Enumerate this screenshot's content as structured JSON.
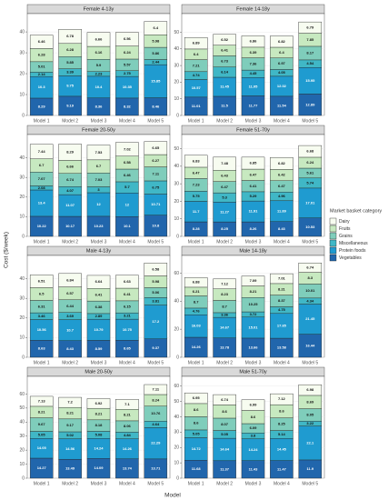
{
  "chart_data": {
    "type": "stacked_bar",
    "x_label": "Model",
    "y_label": "Cost ($/week)",
    "legend_title": "Market basket category",
    "legend_position": "right",
    "grid": true,
    "categories": [
      "Model 1",
      "Model 2",
      "Model 3",
      "Model 4",
      "Model 5"
    ],
    "series": [
      {
        "name": "Vegetables",
        "color": "#2166ac"
      },
      {
        "name": "Protein foods",
        "color": "#1f9bd0"
      },
      {
        "name": "Miscellaneous",
        "color": "#40b7c6"
      },
      {
        "name": "Grains",
        "color": "#7fcdbb"
      },
      {
        "name": "Fruits",
        "color": "#c7e9c0"
      },
      {
        "name": "Dairy",
        "color": "#f7fcf0"
      }
    ],
    "facets": [
      {
        "title": "Female 4-13y",
        "ylim": [
          0,
          47
        ],
        "yticks": [
          0,
          10,
          20,
          30,
          40
        ],
        "values": [
          [
            8.29,
            9.19,
            8.36,
            8.32,
            8.46
          ],
          [
            10.3,
            9.75,
            10.4,
            10.35,
            15.85
          ],
          [
            2.14,
            3.39,
            2.23,
            2.75,
            2.44
          ],
          [
            5.01,
            5.85,
            5.9,
            5.57,
            5.86
          ],
          [
            6.28,
            6.28,
            6.16,
            6.24,
            5.98
          ],
          [
            6.46,
            6.78,
            6.66,
            6.56,
            6.4
          ]
        ]
      },
      {
        "title": "Female 14-18y",
        "ylim": [
          0,
          59
        ],
        "yticks": [
          0,
          10,
          20,
          30,
          40,
          50
        ],
        "values": [
          [
            11.01,
            11.5,
            11.77,
            11.54,
            12.89
          ],
          [
            10.57,
            11.45,
            11.05,
            12.02,
            15.95
          ],
          [
            4.74,
            6.14,
            4.45,
            4.05,
            4.54
          ],
          [
            7.21,
            6.73,
            7.36,
            6.97,
            8.17
          ],
          [
            6.4,
            6.41,
            6.39,
            6.4,
            7.85
          ],
          [
            6.89,
            6.52,
            6.86,
            6.82,
            6.79
          ]
        ]
      },
      {
        "title": "Female 20-50y",
        "ylim": [
          0,
          50
        ],
        "yticks": [
          0,
          10,
          20,
          30,
          40
        ],
        "values": [
          [
            10.22,
            10.17,
            10.23,
            10.1,
            10.8
          ],
          [
            13.4,
            11.07,
            12,
            12,
            10.71
          ],
          [
            2.08,
            4.07,
            3,
            5.7,
            6.75
          ],
          [
            7.07,
            6.74,
            7.03,
            6.46,
            7.11
          ],
          [
            6.7,
            6.66,
            6.7,
            6.58,
            6.27
          ],
          [
            7.44,
            8.29,
            7.53,
            7.02,
            6.65
          ]
        ]
      },
      {
        "title": "Female 51-70y",
        "ylim": [
          0,
          56
        ],
        "yticks": [
          0,
          10,
          20,
          30,
          40,
          50
        ],
        "values": [
          [
            8.28,
            8.25,
            8.26,
            8.43,
            10.53
          ],
          [
            11.7,
            11.27,
            11.91,
            11.89,
            17.01
          ],
          [
            5.75,
            5.3,
            5.29,
            4.96,
            5.74
          ],
          [
            7.23,
            6.47,
            6.41,
            6.47,
            5.61
          ],
          [
            6.47,
            6.43,
            6.47,
            6.42,
            6.24
          ],
          [
            6.83,
            7.48,
            6.85,
            6.82,
            6.68
          ]
        ]
      },
      {
        "title": "Male 4-13y",
        "ylim": [
          0,
          50
        ],
        "yticks": [
          0,
          10,
          20,
          30,
          40
        ],
        "values": [
          [
            8.63,
            8.43,
            8.59,
            8.65,
            9.37
          ],
          [
            10.56,
            10.7,
            10.79,
            10.75,
            17.2
          ],
          [
            3.46,
            3.69,
            2.89,
            3.21,
            3.81
          ],
          [
            6.31,
            6.44,
            6.38,
            6.15,
            5.06
          ],
          [
            6.5,
            6.57,
            6.41,
            6.41,
            5.98
          ],
          [
            6.51,
            6.84,
            6.64,
            6.63,
            6.58
          ]
        ]
      },
      {
        "title": "Male 14-18y",
        "ylim": [
          0,
          70
        ],
        "yticks": [
          0,
          20,
          40,
          60
        ],
        "values": [
          [
            14.26,
            13.78,
            13.66,
            13.58,
            16.44
          ],
          [
            16.03,
            14.67,
            15.01,
            17.65,
            21.45
          ],
          [
            4.76,
            3.36,
            3.72,
            4.75,
            4.34
          ],
          [
            8.7,
            8.7,
            10.25,
            8.37,
            10.01
          ],
          [
            6.21,
            8.23,
            8.21,
            8.21,
            8.3
          ],
          [
            6.88,
            7.12,
            7.09,
            7.01,
            6.74
          ]
        ]
      },
      {
        "title": "Male 20-50y",
        "ylim": [
          0,
          70
        ],
        "yticks": [
          0,
          10,
          20,
          30,
          40,
          50,
          60
        ],
        "values": [
          [
            14.27,
            13.49,
            14.09,
            13.74,
            13.71
          ],
          [
            14.05,
            14.56,
            14.24,
            14.26,
            22.29
          ],
          [
            5.05,
            5.02,
            5.08,
            4.84,
            4.64
          ],
          [
            9.67,
            9.17,
            8.18,
            8.06,
            10.76
          ],
          [
            8.21,
            8.21,
            8.21,
            8.21,
            8.24
          ],
          [
            7.13,
            7.2,
            6.92,
            7.1,
            7.11
          ]
        ]
      },
      {
        "title": "Male 51-70y",
        "ylim": [
          0,
          64
        ],
        "yticks": [
          0,
          10,
          20,
          30,
          40,
          50,
          60
        ],
        "values": [
          [
            11.68,
            11.37,
            11.43,
            11.47,
            11.9
          ],
          [
            14.72,
            14.64,
            14.24,
            14.45,
            22.1
          ],
          [
            5.05,
            5.05,
            3.8,
            5.14,
            3.22
          ],
          [
            8.6,
            8.07,
            6.09,
            8.25,
            8.05
          ],
          [
            8.6,
            8.6,
            8.6,
            8.6,
            8.69
          ],
          [
            6.95,
            6.74,
            6.99,
            7.12,
            6.98
          ]
        ]
      }
    ]
  }
}
